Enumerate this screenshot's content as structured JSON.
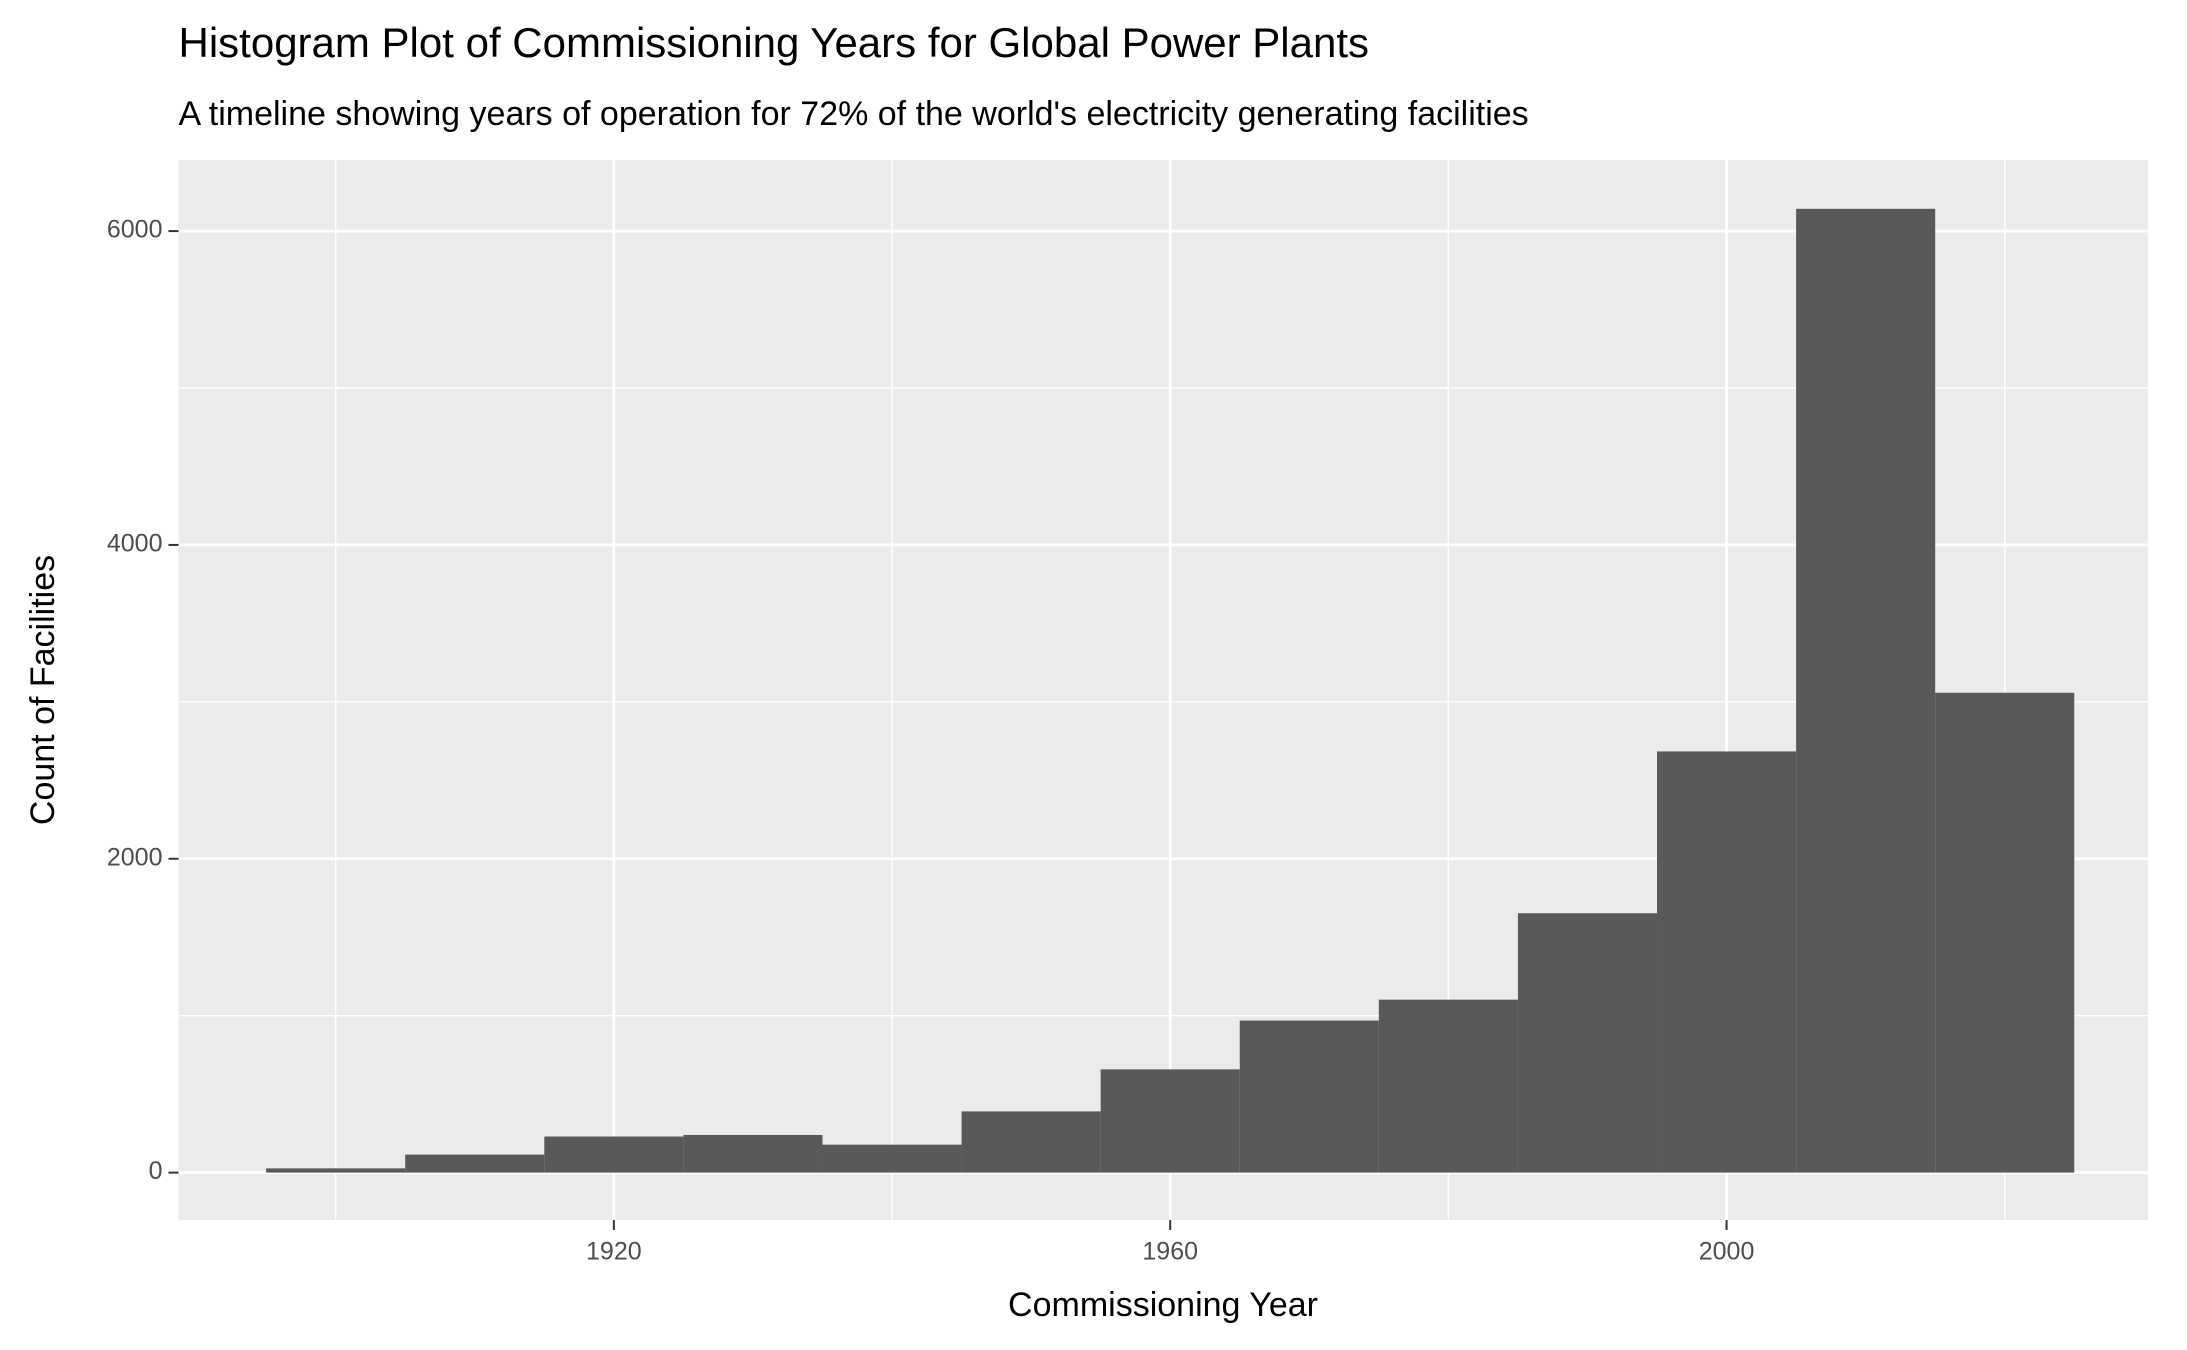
{
  "chart_data": {
    "type": "histogram",
    "title": "Histogram Plot of Commissioning Years for Global Power Plants",
    "subtitle": "A timeline showing years of operation for 72% of the world's electricity generating facilities",
    "x_label": "Commissioning Year",
    "y_label": "Count of Facilities",
    "bins": [
      1895,
      1905,
      1915,
      1925,
      1935,
      1945,
      1955,
      1965,
      1975,
      1985,
      1995,
      2005,
      2015,
      2025
    ],
    "values": [
      27,
      115,
      230,
      240,
      178,
      390,
      658,
      969,
      1102,
      1653,
      2684,
      6142,
      3058
    ],
    "color": "#595959",
    "xlim": [
      1888.7,
      2030.3
    ],
    "ylim": [
      -302,
      6453
    ],
    "xticks": [
      1920,
      1960,
      2000
    ],
    "yticks": [
      0,
      2000,
      4000,
      6000
    ],
    "minor_xticks": [
      1900,
      1940,
      1980,
      2020
    ],
    "minor_yticks": [
      1000,
      3000,
      5000
    ],
    "grid": true
  }
}
